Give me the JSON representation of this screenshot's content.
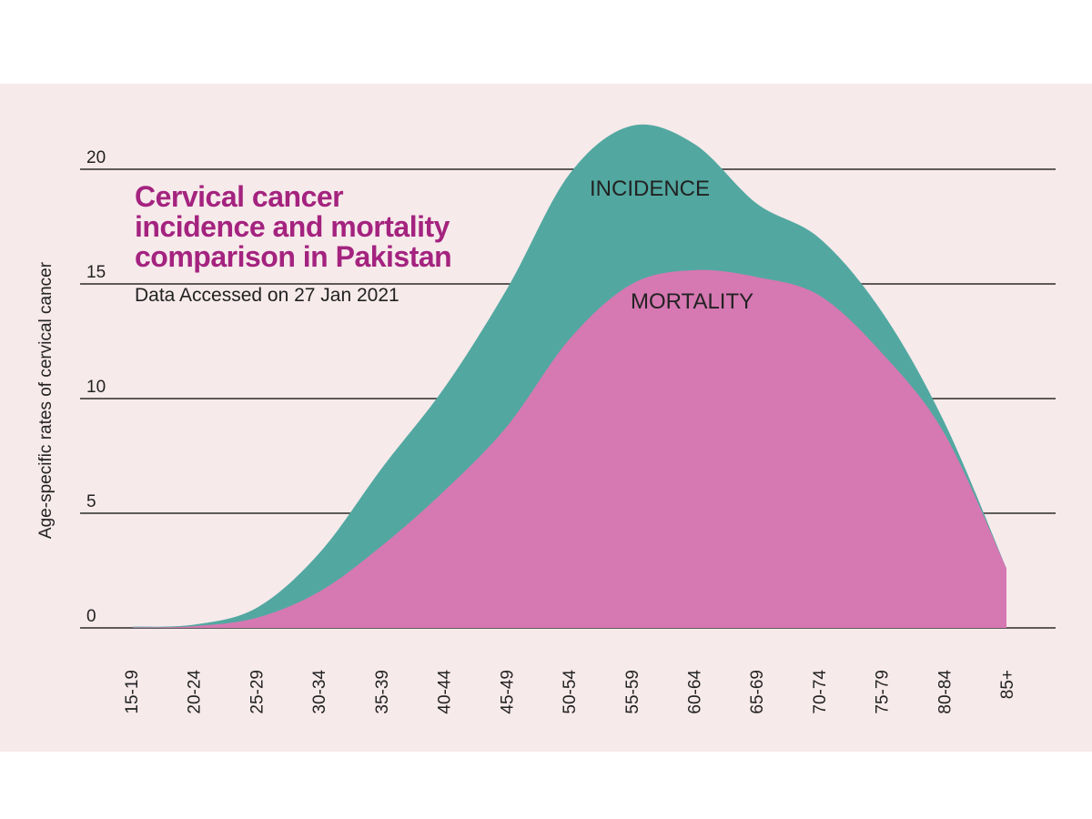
{
  "chart_data": {
    "type": "area",
    "title": "Cervical cancer incidence and mortality comparison in Pakistan",
    "subtitle": "Data Accessed on 27 Jan 2021",
    "xlabel": "",
    "ylabel": "Age-specific rates of cervical cancer",
    "categories": [
      "15-19",
      "20-24",
      "25-29",
      "30-34",
      "35-39",
      "40-44",
      "45-49",
      "50-54",
      "55-59",
      "60-64",
      "65-69",
      "70-74",
      "75-79",
      "80-84",
      "85+"
    ],
    "yticks": [
      0,
      5,
      10,
      15,
      20
    ],
    "ylim": [
      0,
      22
    ],
    "grid": true,
    "series": [
      {
        "name": "INCIDENCE",
        "color": "#52a8a1",
        "values": [
          0.05,
          0.15,
          0.9,
          3.3,
          7.0,
          10.5,
          14.8,
          19.8,
          21.9,
          21.1,
          18.5,
          17.0,
          13.8,
          9.0,
          2.6
        ]
      },
      {
        "name": "MORTALITY",
        "color": "#d678b2",
        "values": [
          0.02,
          0.08,
          0.45,
          1.6,
          3.6,
          6.0,
          8.8,
          12.6,
          15.0,
          15.6,
          15.3,
          14.5,
          12.0,
          8.5,
          2.6
        ]
      }
    ]
  },
  "colors": {
    "background": "#f7eaeb",
    "gridline": "#2b2b2b",
    "title": "#a4237f"
  }
}
